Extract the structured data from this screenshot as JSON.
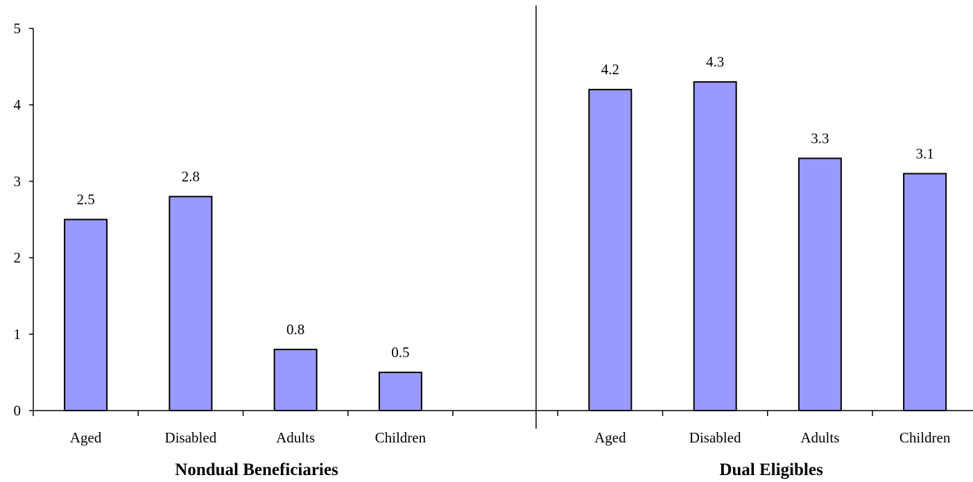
{
  "chart_data": {
    "type": "bar",
    "ylim": [
      0,
      5
    ],
    "yticks": [
      "0",
      "1",
      "2",
      "3",
      "4",
      "5"
    ],
    "grid": false,
    "bar_color": "#9999ff",
    "bar_edge_color": "#000000",
    "groups": [
      {
        "label": "Nondual Beneficiaries",
        "categories": [
          "Aged",
          "Disabled",
          "Adults",
          "Children"
        ],
        "values": [
          2.5,
          2.8,
          0.8,
          0.5
        ],
        "value_labels": [
          "2.5",
          "2.8",
          "0.8",
          "0.5"
        ]
      },
      {
        "label": "Dual Eligibles",
        "categories": [
          "Aged",
          "Disabled",
          "Adults",
          "Children"
        ],
        "values": [
          4.2,
          4.3,
          3.3,
          3.1
        ],
        "value_labels": [
          "4.2",
          "4.3",
          "3.3",
          "3.1"
        ]
      }
    ]
  }
}
